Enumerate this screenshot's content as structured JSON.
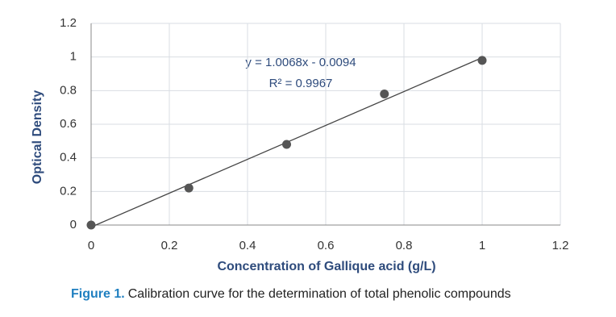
{
  "chart_data": {
    "type": "scatter",
    "x_label": "Concentration  of  Gallique  acid (g/L)",
    "y_label": "Optical  Density",
    "annotations": [
      "y = 1.0068x - 0.0094",
      "R² = 0.9967"
    ],
    "caption_label": "Figure 1.",
    "caption": "Calibration curve for the determination of total phenolic compounds",
    "series": [
      {
        "color": "#555555",
        "x": [
          0,
          0.25,
          0.5,
          0.75,
          1
        ],
        "values": [
          0,
          0.22,
          0.48,
          0.78,
          0.98
        ]
      }
    ],
    "xlim": [
      0,
      1.2
    ],
    "xticks": [
      0,
      0.2,
      0.4,
      0.6,
      0.8,
      1,
      1.2
    ],
    "ylim": [
      0,
      1.2
    ],
    "yticks": [
      0,
      0.2,
      0.4,
      0.6,
      0.8,
      1,
      1.2
    ],
    "grid": true,
    "trendline": true
  }
}
